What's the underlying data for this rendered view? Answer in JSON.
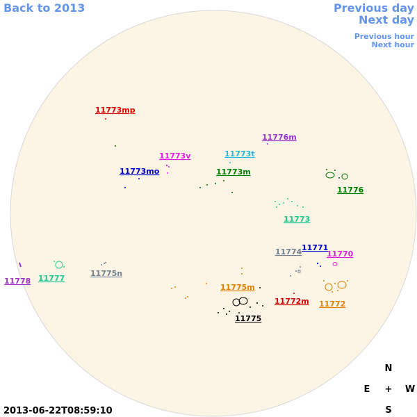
{
  "nav": {
    "back": "Back to 2013",
    "previous_day": "Previous day",
    "next_day": "Next day",
    "previous_hour": "Previous hour",
    "next_hour": "Next hour"
  },
  "regions": [
    "11773mp",
    "11776m",
    "11773v",
    "11773t",
    "11773mo",
    "11773m",
    "11776",
    "11773",
    "11774",
    "11771",
    "11770",
    "11778",
    "11777",
    "11775n",
    "11775m",
    "11772m",
    "11772",
    "11775"
  ],
  "compass": {
    "north": "N",
    "east": "E",
    "center": "+",
    "west": "W",
    "south": "S"
  },
  "timestamp": "2013-06-22T08:59:10"
}
